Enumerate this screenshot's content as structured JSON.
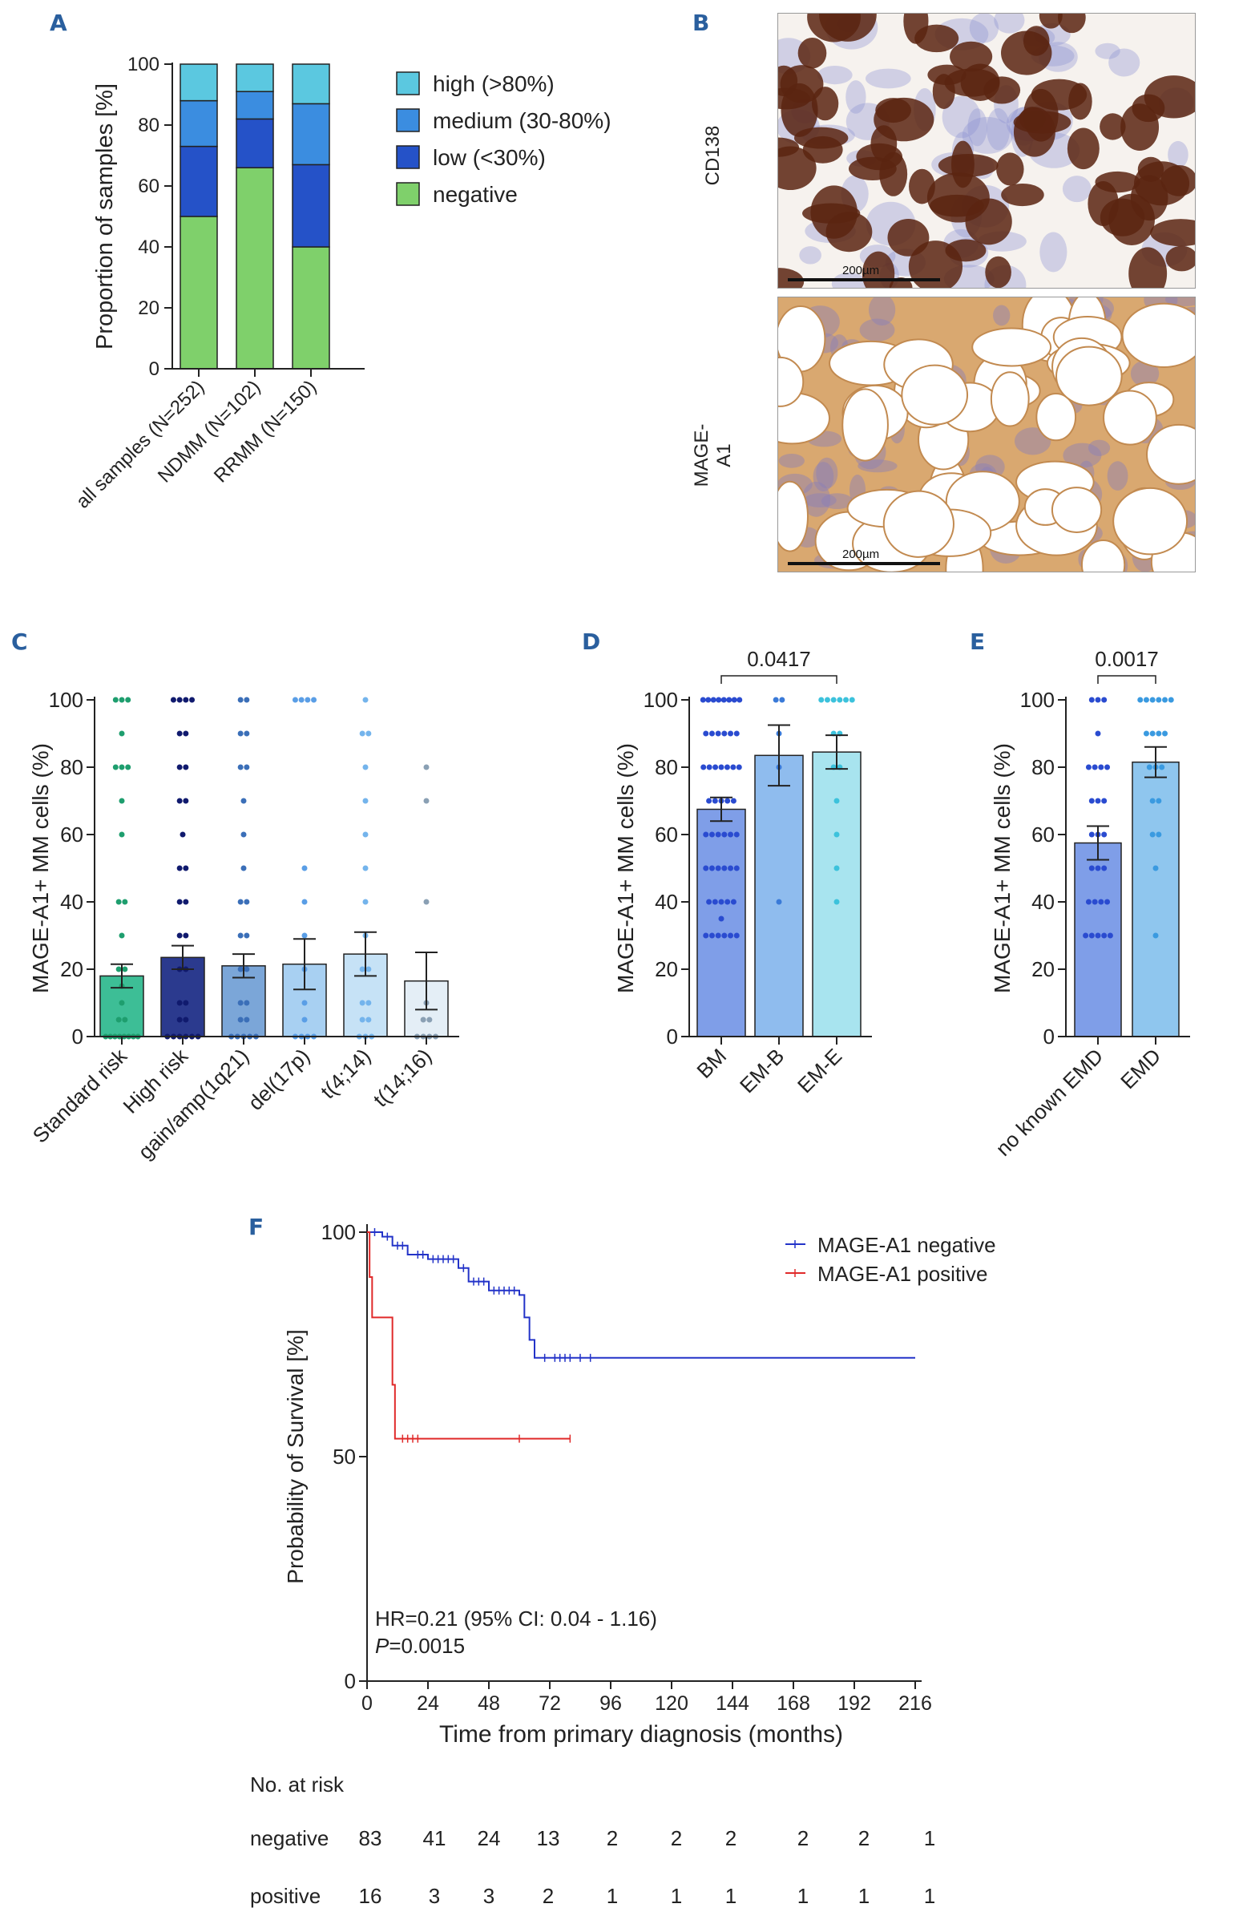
{
  "panel_labels": {
    "a": "A",
    "b": "B",
    "c": "C",
    "d": "D",
    "e": "E",
    "f": "F"
  },
  "colors": {
    "high": "#5bc8e0",
    "medium": "#3b8de0",
    "low": "#2552c8",
    "negative": "#7fd06b",
    "km_negative": "#2333c8",
    "km_positive": "#e02a2a"
  },
  "panel_b": {
    "stain1": "CD138",
    "stain2": "MAGE-A1",
    "scale": "200µm"
  },
  "chart_data": [
    {
      "id": "A",
      "type": "stacked-bar",
      "ylabel": "Proportion of samples [%]",
      "ylim": [
        0,
        100
      ],
      "yticks": [
        0,
        20,
        40,
        60,
        80,
        100
      ],
      "categories": [
        "all samples (N=252)",
        "NDMM (N=102)",
        "RRMM (N=150)"
      ],
      "series": [
        {
          "name": "negative",
          "values": [
            50,
            66,
            40
          ]
        },
        {
          "name": "low (<30%)",
          "values": [
            23,
            16,
            27
          ]
        },
        {
          "name": "medium (30-80%)",
          "values": [
            15,
            9,
            20
          ]
        },
        {
          "name": "high (>80%)",
          "values": [
            12,
            9,
            13
          ]
        }
      ],
      "legend_order": [
        "high (>80%)",
        "medium (30-80%)",
        "low (<30%)",
        "negative"
      ]
    },
    {
      "id": "C",
      "type": "bar-scatter",
      "ylabel": "MAGE-A1+ MM cells (%)",
      "ylim": [
        0,
        100
      ],
      "yticks": [
        0,
        20,
        40,
        60,
        80,
        100
      ],
      "categories": [
        "Standard risk",
        "High risk",
        "gain/amp(1q21)",
        "del(17p)",
        "t(4;14)",
        "t(14;16)"
      ],
      "means": [
        18,
        23.5,
        21,
        21.5,
        24.5,
        16.5
      ],
      "sem": [
        3.5,
        3.5,
        3.5,
        7.5,
        6.5,
        8.5
      ],
      "bar_colors": [
        "#3dbe96",
        "#2b3a8e",
        "#7ba6d8",
        "#a8d0f2",
        "#c6e2f6",
        "#e4eef6"
      ],
      "dot_colors": [
        "#1e9e6e",
        "#101a6e",
        "#3b6fb8",
        "#5a9ee6",
        "#74b4ec",
        "#8aa0b4"
      ],
      "points": [
        [
          100,
          100,
          100,
          90,
          80,
          80,
          80,
          70,
          60,
          40,
          40,
          30,
          20,
          20,
          15,
          10,
          5,
          5,
          0,
          0,
          0,
          0,
          0,
          0,
          0,
          0
        ],
        [
          100,
          100,
          100,
          100,
          90,
          90,
          80,
          80,
          70,
          70,
          60,
          50,
          50,
          40,
          40,
          30,
          30,
          20,
          20,
          10,
          10,
          5,
          5,
          0,
          0,
          0,
          0,
          0,
          0
        ],
        [
          100,
          100,
          90,
          90,
          80,
          80,
          70,
          60,
          50,
          40,
          40,
          30,
          30,
          20,
          20,
          10,
          10,
          5,
          5,
          0,
          0,
          0,
          0,
          0
        ],
        [
          100,
          100,
          100,
          100,
          50,
          40,
          30,
          20,
          10,
          5,
          0,
          0,
          0,
          0
        ],
        [
          100,
          90,
          90,
          80,
          70,
          60,
          50,
          40,
          30,
          20,
          20,
          10,
          10,
          5,
          5,
          0,
          0,
          0
        ],
        [
          80,
          70,
          40,
          10,
          5,
          5,
          0,
          0,
          0,
          0
        ]
      ]
    },
    {
      "id": "D",
      "type": "bar-scatter",
      "ylabel": "MAGE-A1+ MM cells (%)",
      "ylim": [
        0,
        100
      ],
      "yticks": [
        0,
        20,
        40,
        60,
        80,
        100
      ],
      "categories": [
        "BM",
        "EM-B",
        "EM-E"
      ],
      "means": [
        67.5,
        83.5,
        84.5
      ],
      "sem": [
        3.5,
        9,
        5
      ],
      "bar_colors": [
        "#7f9ee8",
        "#8fbcee",
        "#a8e4ef"
      ],
      "dot_colors": [
        "#2a4bd0",
        "#3a7ad8",
        "#3cc2dc"
      ],
      "points": [
        [
          100,
          100,
          100,
          100,
          100,
          100,
          100,
          100,
          90,
          90,
          90,
          90,
          90,
          90,
          80,
          80,
          80,
          80,
          80,
          80,
          80,
          70,
          70,
          70,
          70,
          70,
          60,
          60,
          60,
          60,
          60,
          60,
          50,
          50,
          50,
          50,
          50,
          50,
          40,
          40,
          40,
          40,
          40,
          35,
          30,
          30,
          30,
          30,
          30,
          30
        ],
        [
          100,
          100,
          90,
          80,
          40
        ],
        [
          100,
          100,
          100,
          100,
          100,
          100,
          90,
          90,
          80,
          80,
          70,
          60,
          50,
          40
        ]
      ],
      "comparison": {
        "from": 0,
        "to": 2,
        "p": "0.0417"
      }
    },
    {
      "id": "E",
      "type": "bar-scatter",
      "ylabel": "MAGE-A1+ MM cells (%)",
      "ylim": [
        0,
        100
      ],
      "yticks": [
        0,
        20,
        40,
        60,
        80,
        100
      ],
      "categories": [
        "no known EMD",
        "EMD"
      ],
      "means": [
        57.5,
        81.5
      ],
      "sem": [
        5,
        4.5
      ],
      "bar_colors": [
        "#7f9ee8",
        "#8fc6ee"
      ],
      "dot_colors": [
        "#2a4bd0",
        "#3a9ae0"
      ],
      "points": [
        [
          100,
          100,
          100,
          90,
          80,
          80,
          80,
          80,
          70,
          70,
          70,
          60,
          60,
          60,
          50,
          50,
          50,
          40,
          40,
          40,
          40,
          30,
          30,
          30,
          30,
          30
        ],
        [
          100,
          100,
          100,
          100,
          100,
          100,
          90,
          90,
          90,
          90,
          80,
          80,
          80,
          70,
          70,
          60,
          60,
          50,
          30
        ]
      ],
      "comparison": {
        "from": 0,
        "to": 1,
        "p": "0.0017"
      }
    },
    {
      "id": "F",
      "type": "line",
      "ylabel": "Probability of Survival [%]",
      "xlabel": "Time from primary diagnosis (months)",
      "xlim": [
        0,
        216
      ],
      "xticks": [
        0,
        24,
        48,
        72,
        96,
        120,
        144,
        168,
        192,
        216
      ],
      "ylim": [
        0,
        100
      ],
      "yticks": [
        0,
        50,
        100
      ],
      "series": [
        {
          "name": "MAGE-A1 negative",
          "steps": [
            [
              0,
              100
            ],
            [
              6,
              99
            ],
            [
              10,
              97
            ],
            [
              16,
              95
            ],
            [
              24,
              94
            ],
            [
              36,
              92
            ],
            [
              40,
              89
            ],
            [
              48,
              87
            ],
            [
              60,
              86
            ],
            [
              62,
              81
            ],
            [
              64,
              76
            ],
            [
              66,
              72
            ],
            [
              216,
              72
            ]
          ],
          "censor": [
            3,
            8,
            12,
            14,
            20,
            22,
            26,
            28,
            30,
            32,
            34,
            38,
            42,
            44,
            46,
            50,
            52,
            54,
            56,
            58,
            70,
            74,
            76,
            78,
            80,
            84,
            88
          ]
        },
        {
          "name": "MAGE-A1 positive",
          "steps": [
            [
              0,
              100
            ],
            [
              1,
              90
            ],
            [
              2,
              81
            ],
            [
              9,
              81
            ],
            [
              10,
              66
            ],
            [
              11,
              54
            ],
            [
              80,
              54
            ]
          ],
          "censor": [
            14,
            16,
            18,
            20,
            60,
            80
          ]
        }
      ],
      "annotation": {
        "hr": "HR=0.21 (95% CI: 0.04 - 1.16)",
        "p_label": "P",
        "p_value": "=0.0015"
      },
      "risk_table": {
        "title": "No. at risk",
        "rows": [
          {
            "label": "negative",
            "values": [
              "83",
              "41",
              "24",
              "13",
              "2",
              "2",
              "2",
              "2",
              "2",
              "1"
            ]
          },
          {
            "label": "positive",
            "values": [
              "16",
              "3",
              "3",
              "2",
              "1",
              "1",
              "1",
              "1",
              "1",
              "1"
            ]
          }
        ]
      }
    }
  ]
}
